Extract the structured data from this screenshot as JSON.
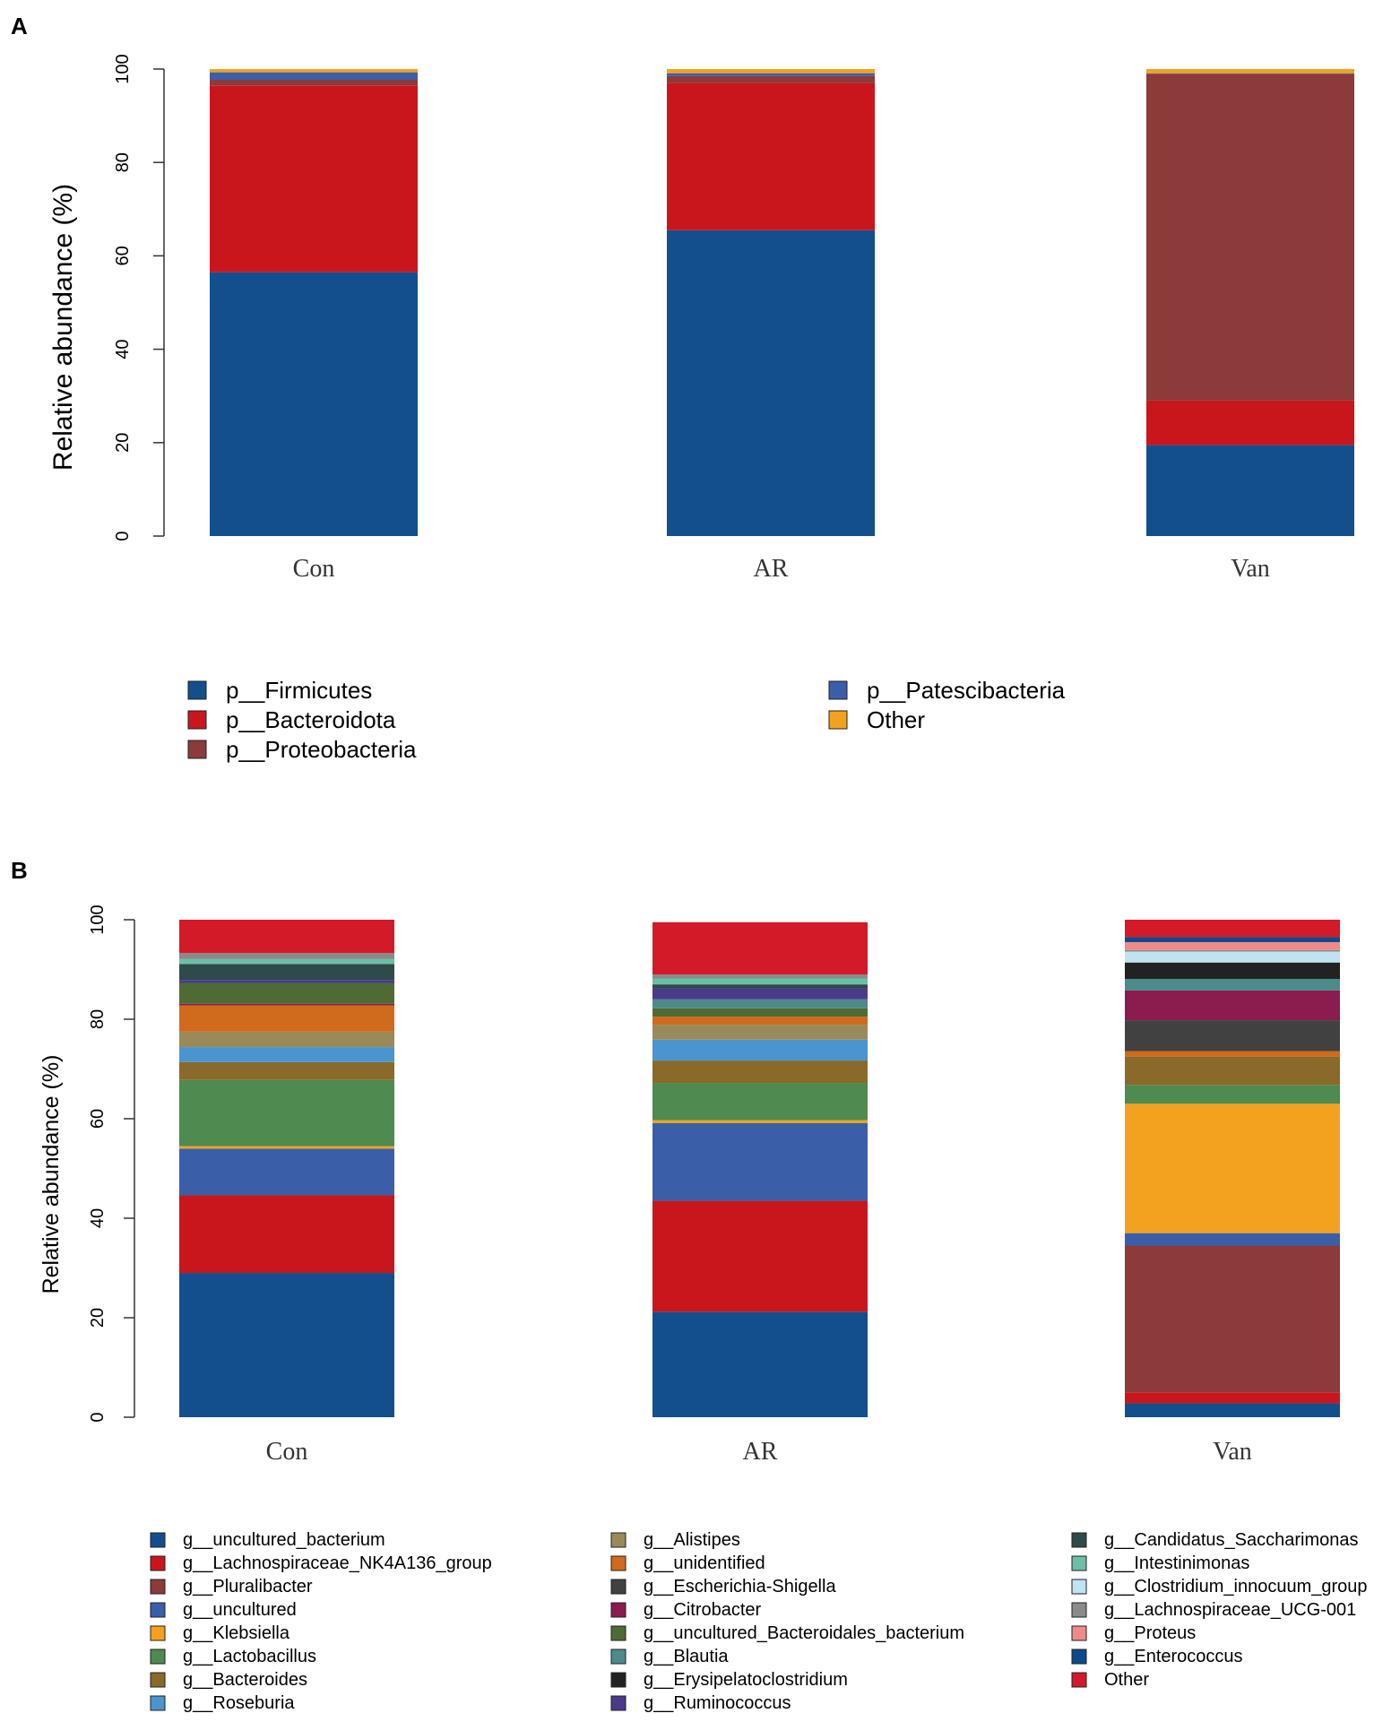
{
  "chart_data": [
    {
      "panel": "A",
      "type": "bar",
      "stacked": true,
      "ylabel": "Relative abundance (%)",
      "ylim": [
        0,
        100
      ],
      "yticks": [
        "0",
        "20",
        "40",
        "60",
        "80",
        "100"
      ],
      "categories": [
        "Con",
        "AR",
        "Van"
      ],
      "series": [
        {
          "name": "p__Firmicutes",
          "color": "#134f8c",
          "values": [
            56.5,
            65.5,
            19.5
          ]
        },
        {
          "name": "p__Bacteroidota",
          "color": "#c9161d",
          "values": [
            40.0,
            31.5,
            9.5
          ]
        },
        {
          "name": "p__Proteobacteria",
          "color": "#8c3a3a",
          "values": [
            1.2,
            1.5,
            70.0
          ]
        },
        {
          "name": "p__Patescibacteria",
          "color": "#3b5ea8",
          "values": [
            1.6,
            0.6,
            0.1
          ]
        },
        {
          "name": "Other",
          "color": "#f2a21f",
          "values": [
            0.7,
            0.9,
            0.9
          ]
        }
      ]
    },
    {
      "panel": "B",
      "type": "bar",
      "stacked": true,
      "ylabel": "Relative abundance (%)",
      "ylim": [
        0,
        100
      ],
      "yticks": [
        "0",
        "20",
        "40",
        "60",
        "80",
        "100"
      ],
      "categories": [
        "Con",
        "AR",
        "Van"
      ],
      "series": [
        {
          "name": "g__uncultured_bacterium",
          "color": "#134f8c",
          "values": [
            29.0,
            21.2,
            2.8
          ]
        },
        {
          "name": "g__Lachnospiraceae_NK4A136_group",
          "color": "#c9161d",
          "values": [
            15.6,
            22.3,
            2.2
          ]
        },
        {
          "name": "g__Pluralibacter",
          "color": "#8c3a3a",
          "values": [
            0.0,
            0.0,
            29.5
          ]
        },
        {
          "name": "g__uncultured",
          "color": "#3b5ea8",
          "values": [
            9.4,
            15.6,
            2.5
          ]
        },
        {
          "name": "g__Klebsiella",
          "color": "#f2a21f",
          "values": [
            0.5,
            0.6,
            26.0
          ]
        },
        {
          "name": "g__Lactobacillus",
          "color": "#4f8a50",
          "values": [
            13.3,
            7.5,
            3.8
          ]
        },
        {
          "name": "g__Bacteroides",
          "color": "#8a6a2a",
          "values": [
            3.6,
            4.5,
            5.7
          ]
        },
        {
          "name": "g__Roseburia",
          "color": "#4a95d0",
          "values": [
            3.0,
            4.2,
            0.0
          ]
        },
        {
          "name": "g__Alistipes",
          "color": "#9a8a5a",
          "values": [
            3.1,
            3.0,
            0.0
          ]
        },
        {
          "name": "g__unidentified",
          "color": "#d06a1c",
          "values": [
            5.3,
            1.6,
            1.1
          ]
        },
        {
          "name": "g__Escherichia-Shigella",
          "color": "#414141",
          "values": [
            0.0,
            0.0,
            6.2
          ]
        },
        {
          "name": "g__Citrobacter",
          "color": "#8a1c4e",
          "values": [
            0.3,
            0.0,
            6.0
          ]
        },
        {
          "name": "g__uncultured_Bacteroidales_bacterium",
          "color": "#4e6b35",
          "values": [
            4.2,
            1.7,
            0.0
          ]
        },
        {
          "name": "g__Blautia",
          "color": "#4d8a8a",
          "values": [
            0.0,
            1.8,
            2.3
          ]
        },
        {
          "name": "g__Erysipelatoclostridium",
          "color": "#222222",
          "values": [
            0.0,
            0.0,
            3.3
          ]
        },
        {
          "name": "g__Ruminococcus",
          "color": "#4b3a8a",
          "values": [
            0.6,
            2.2,
            0.0
          ]
        },
        {
          "name": "g__Candidatus_Saccharimonas",
          "color": "#2f4a4a",
          "values": [
            3.2,
            0.8,
            0.0
          ]
        },
        {
          "name": "g__Intestinimonas",
          "color": "#6bbfa6",
          "values": [
            1.0,
            1.2,
            0.0
          ]
        },
        {
          "name": "g__Clostridium_innocuum_group",
          "color": "#bfe3f0",
          "values": [
            0.0,
            0.0,
            2.2
          ]
        },
        {
          "name": "g__Lachnospiraceae_UCG-001",
          "color": "#8a8a8a",
          "values": [
            1.2,
            0.8,
            0.3
          ]
        },
        {
          "name": "g__Proteus",
          "color": "#ef8a8a",
          "values": [
            0.0,
            0.0,
            1.6
          ]
        },
        {
          "name": "g__Enterococcus",
          "color": "#0d4a8a",
          "values": [
            0.0,
            0.0,
            1.0
          ]
        },
        {
          "name": "Other",
          "color": "#d21a28",
          "values": [
            6.7,
            10.5,
            3.5
          ]
        }
      ]
    }
  ],
  "panels": [
    {
      "letter": "A"
    },
    {
      "letter": "B"
    }
  ]
}
